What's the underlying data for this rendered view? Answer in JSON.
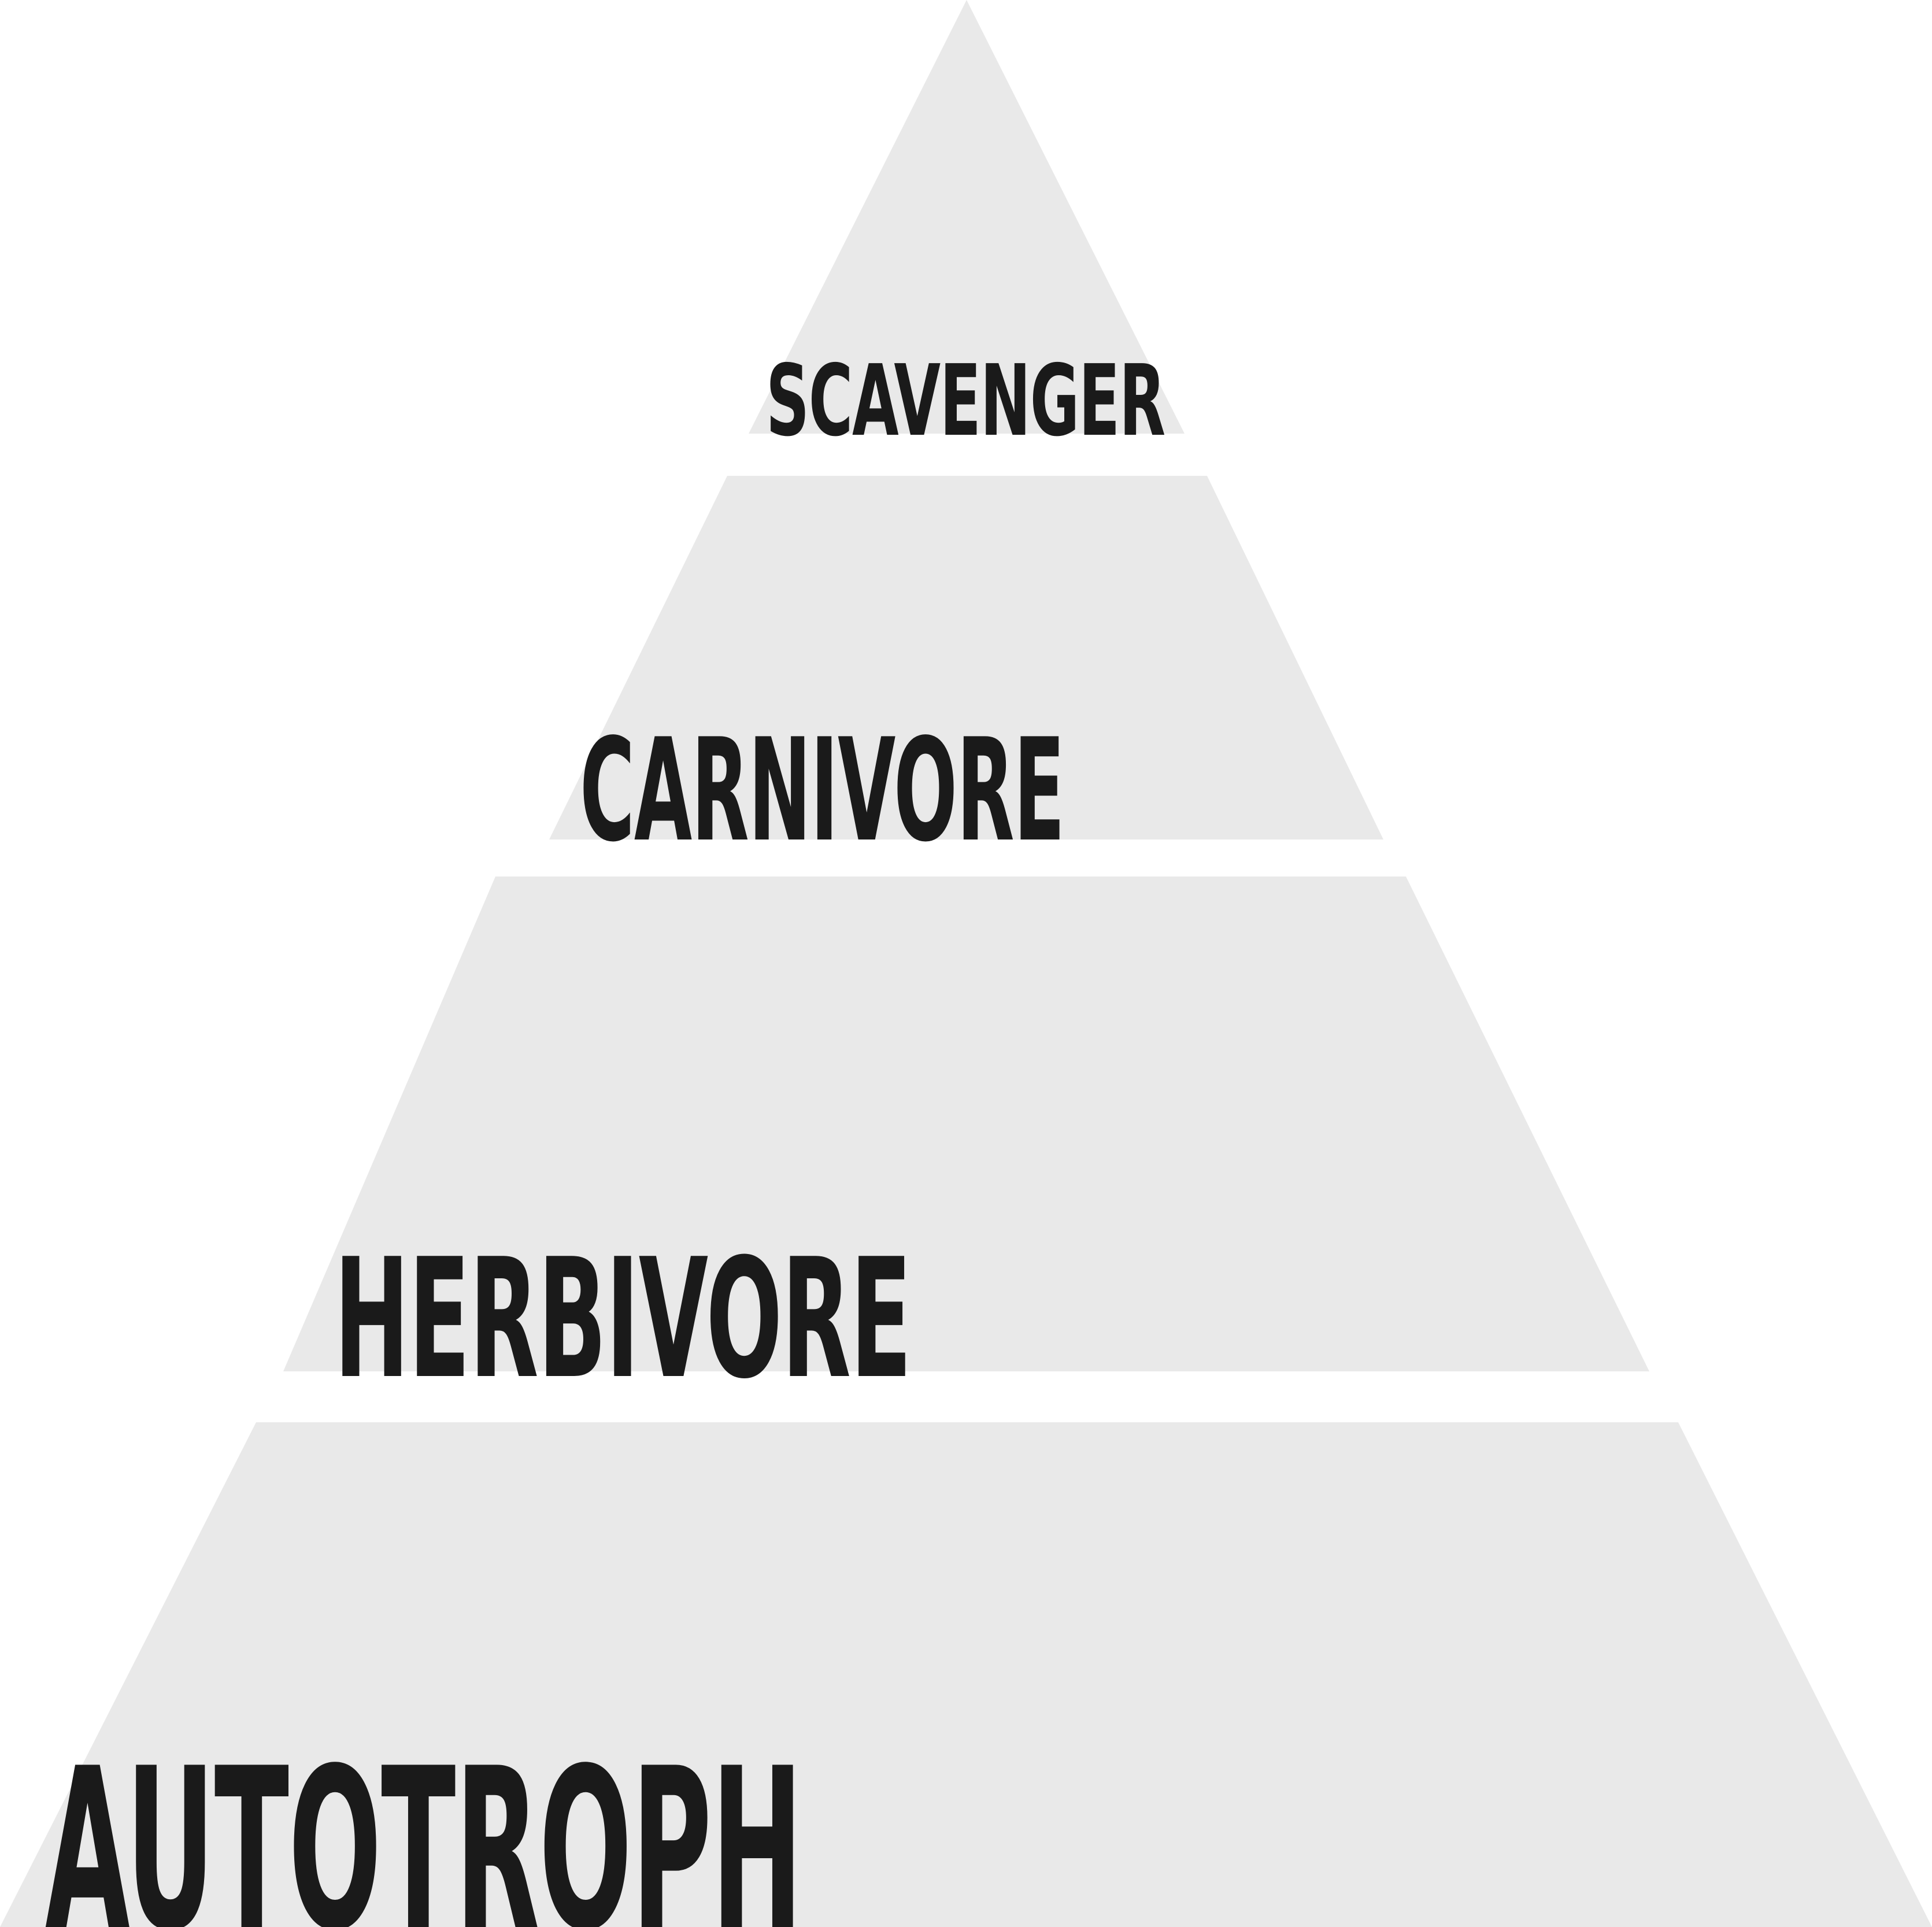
{
  "diagram": {
    "type": "pyramid",
    "tier_color": "#e9e9e9",
    "label_color": "#1a1a1a",
    "background_color": "#ffffff",
    "tiers": [
      {
        "label": "SCAVENGER"
      },
      {
        "label": "CARNIVORE"
      },
      {
        "label": "HERBIVORE"
      },
      {
        "label": "AUTOTROPH"
      }
    ]
  }
}
